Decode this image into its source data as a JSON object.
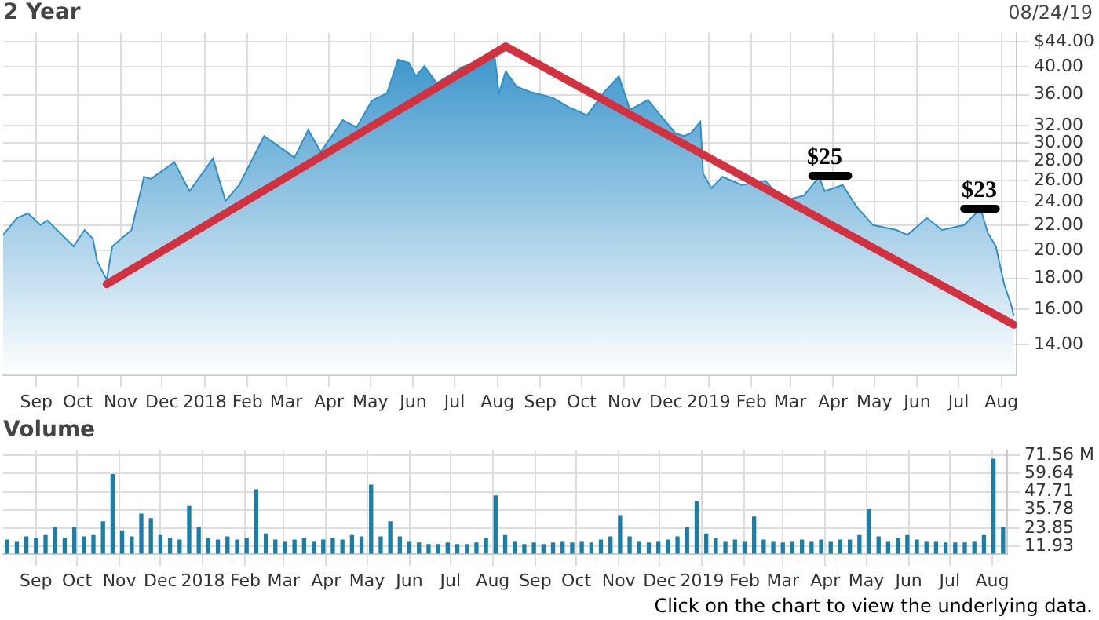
{
  "chart_data": [
    {
      "type": "area",
      "title": "2 Year",
      "log": true,
      "grid": true,
      "xlim": [
        "2017-08-22",
        "2019-08-26"
      ],
      "xticks": [
        {
          "value": "2017-09-15",
          "label": "Sep"
        },
        {
          "value": "2017-10-15",
          "label": "Oct"
        },
        {
          "value": "2017-11-15",
          "label": "Nov"
        },
        {
          "value": "2017-12-15",
          "label": "Dec"
        },
        {
          "value": "2018-01-15",
          "label": "2018"
        },
        {
          "value": "2018-02-15",
          "label": "Feb"
        },
        {
          "value": "2018-03-15",
          "label": "Mar"
        },
        {
          "value": "2018-04-15",
          "label": "Apr"
        },
        {
          "value": "2018-05-15",
          "label": "May"
        },
        {
          "value": "2018-06-15",
          "label": "Jun"
        },
        {
          "value": "2018-07-15",
          "label": "Jul"
        },
        {
          "value": "2018-08-15",
          "label": "Aug"
        },
        {
          "value": "2018-09-15",
          "label": "Sep"
        },
        {
          "value": "2018-10-15",
          "label": "Oct"
        },
        {
          "value": "2018-11-15",
          "label": "Nov"
        },
        {
          "value": "2018-12-15",
          "label": "Dec"
        },
        {
          "value": "2019-01-15",
          "label": "2019"
        },
        {
          "value": "2019-02-15",
          "label": "Feb"
        },
        {
          "value": "2019-03-15",
          "label": "Mar"
        },
        {
          "value": "2019-04-15",
          "label": "Apr"
        },
        {
          "value": "2019-05-15",
          "label": "May"
        },
        {
          "value": "2019-06-15",
          "label": "Jun"
        },
        {
          "value": "2019-07-15",
          "label": "Jul"
        },
        {
          "value": "2019-08-15",
          "label": "Aug"
        }
      ],
      "ylim": [
        12.5,
        45.5
      ],
      "yticks": [
        {
          "value": 14,
          "label": "14.00"
        },
        {
          "value": 16,
          "label": "16.00"
        },
        {
          "value": 18,
          "label": "18.00"
        },
        {
          "value": 20,
          "label": "20.00"
        },
        {
          "value": 22,
          "label": "22.00"
        },
        {
          "value": 24,
          "label": "24.00"
        },
        {
          "value": 26,
          "label": "26.00"
        },
        {
          "value": 28,
          "label": "28.00"
        },
        {
          "value": 30,
          "label": "30.00"
        },
        {
          "value": 32,
          "label": "32.00"
        },
        {
          "value": 36,
          "label": "36.00"
        },
        {
          "value": 40,
          "label": "40.00"
        },
        {
          "value": 44,
          "label": "$44.00"
        }
      ],
      "annotations": [
        "08/24/19",
        {
          "text": "$25",
          "x": "2019-04-09",
          "y": 26.5
        },
        {
          "text": "$23",
          "x": "2019-07-30",
          "y": 23.4
        }
      ],
      "series": [
        {
          "color": "#2f8fc8",
          "x": [
            "2017-08-22",
            "2017-09-01",
            "2017-09-09",
            "2017-09-18",
            "2017-09-23",
            "2017-10-12",
            "2017-10-20",
            "2017-10-26",
            "2017-10-29",
            "2017-11-05",
            "2017-11-09",
            "2017-11-23",
            "2017-12-02",
            "2017-12-07",
            "2017-12-24",
            "2018-01-04",
            "2018-01-21",
            "2018-01-30",
            "2018-02-09",
            "2018-02-27",
            "2018-03-21",
            "2018-03-31",
            "2018-04-09",
            "2018-04-25",
            "2018-05-05",
            "2018-05-16",
            "2018-05-27",
            "2018-06-04",
            "2018-06-12",
            "2018-06-17",
            "2018-06-23",
            "2018-07-02",
            "2018-07-21",
            "2018-08-04",
            "2018-08-13",
            "2018-08-16",
            "2018-08-21",
            "2018-08-29",
            "2018-09-09",
            "2018-09-24",
            "2018-10-05",
            "2018-10-19",
            "2018-10-31",
            "2018-11-11",
            "2018-11-19",
            "2018-12-02",
            "2018-12-11",
            "2018-12-22",
            "2018-12-28",
            "2019-01-02",
            "2019-01-09",
            "2019-01-11",
            "2019-01-17",
            "2019-01-25",
            "2019-02-08",
            "2019-02-25",
            "2019-03-10",
            "2019-03-25",
            "2019-04-05",
            "2019-04-09",
            "2019-04-22",
            "2019-05-02",
            "2019-05-14",
            "2019-05-31",
            "2019-06-08",
            "2019-06-22",
            "2019-07-03",
            "2019-07-19",
            "2019-07-31",
            "2019-08-05",
            "2019-08-11",
            "2019-08-17",
            "2019-08-22",
            "2019-08-24"
          ],
          "values": [
            21.2,
            22.6,
            23.0,
            22.0,
            22.4,
            20.3,
            21.6,
            20.9,
            19.2,
            17.9,
            20.3,
            21.6,
            26.4,
            26.2,
            27.9,
            25.0,
            28.3,
            24.1,
            25.6,
            30.8,
            28.4,
            31.5,
            29.0,
            32.7,
            31.8,
            35.2,
            36.2,
            41.1,
            40.6,
            38.6,
            40.1,
            37.6,
            40.0,
            41.1,
            41.6,
            36.2,
            39.3,
            37.1,
            36.3,
            35.6,
            34.4,
            33.3,
            36.3,
            38.6,
            34.0,
            35.3,
            33.3,
            31.1,
            30.8,
            31.1,
            32.5,
            26.7,
            25.3,
            26.4,
            25.6,
            26.0,
            24.1,
            24.6,
            26.4,
            25.0,
            25.6,
            23.6,
            22.0,
            21.6,
            21.2,
            22.6,
            21.6,
            22.0,
            23.4,
            21.4,
            20.3,
            17.6,
            16.3,
            15.6
          ]
        },
        {
          "type": "line",
          "color": "#d2323f",
          "x": [
            "2017-11-05",
            "2018-08-21",
            "2019-08-24"
          ],
          "values": [
            17.6,
            43.2,
            15.1
          ]
        },
        {
          "type": "line",
          "color": "#000000",
          "x": [
            "2019-03-31",
            "2019-04-26"
          ],
          "values": [
            26.5,
            26.5
          ]
        },
        {
          "type": "line",
          "color": "#000000",
          "x": [
            "2019-07-19",
            "2019-08-11"
          ],
          "values": [
            23.4,
            23.4
          ]
        }
      ]
    },
    {
      "type": "bar",
      "title": "Volume",
      "grid": true,
      "xlim": [
        "2017-08-22",
        "2019-08-26"
      ],
      "xticks": [
        {
          "value": "2017-09-15",
          "label": "Sep"
        },
        {
          "value": "2017-10-15",
          "label": "Oct"
        },
        {
          "value": "2017-11-15",
          "label": "Nov"
        },
        {
          "value": "2017-12-15",
          "label": "Dec"
        },
        {
          "value": "2018-01-15",
          "label": "2018"
        },
        {
          "value": "2018-02-15",
          "label": "Feb"
        },
        {
          "value": "2018-03-15",
          "label": "Mar"
        },
        {
          "value": "2018-04-15",
          "label": "Apr"
        },
        {
          "value": "2018-05-15",
          "label": "May"
        },
        {
          "value": "2018-06-15",
          "label": "Jun"
        },
        {
          "value": "2018-07-15",
          "label": "Jul"
        },
        {
          "value": "2018-08-15",
          "label": "Aug"
        },
        {
          "value": "2018-09-15",
          "label": "Sep"
        },
        {
          "value": "2018-10-15",
          "label": "Oct"
        },
        {
          "value": "2018-11-15",
          "label": "Nov"
        },
        {
          "value": "2018-12-15",
          "label": "Dec"
        },
        {
          "value": "2019-01-15",
          "label": "2019"
        },
        {
          "value": "2019-02-15",
          "label": "Feb"
        },
        {
          "value": "2019-03-15",
          "label": "Mar"
        },
        {
          "value": "2019-04-15",
          "label": "Apr"
        },
        {
          "value": "2019-05-15",
          "label": "May"
        },
        {
          "value": "2019-06-15",
          "label": "Jun"
        },
        {
          "value": "2019-07-15",
          "label": "Jul"
        },
        {
          "value": "2019-08-15",
          "label": "Aug"
        }
      ],
      "ylim": [
        7,
        75
      ],
      "yticks": [
        11.93,
        23.85,
        35.78,
        47.71,
        59.64,
        {
          "value": 71.56,
          "label": "71.56 M"
        }
      ],
      "annotations": [
        "Click on the chart to view the underlying data."
      ],
      "series": [
        {
          "color": "#1a7fa8",
          "x": [
            "2017-08-25",
            "2017-09-01",
            "2017-09-08",
            "2017-09-15",
            "2017-09-22",
            "2017-09-29",
            "2017-10-06",
            "2017-10-13",
            "2017-10-20",
            "2017-10-27",
            "2017-11-03",
            "2017-11-10",
            "2017-11-17",
            "2017-11-24",
            "2017-12-01",
            "2017-12-08",
            "2017-12-15",
            "2017-12-22",
            "2017-12-29",
            "2018-01-05",
            "2018-01-12",
            "2018-01-19",
            "2018-01-26",
            "2018-02-02",
            "2018-02-09",
            "2018-02-16",
            "2018-02-23",
            "2018-03-02",
            "2018-03-09",
            "2018-03-16",
            "2018-03-23",
            "2018-03-30",
            "2018-04-06",
            "2018-04-13",
            "2018-04-20",
            "2018-04-27",
            "2018-05-04",
            "2018-05-11",
            "2018-05-18",
            "2018-05-25",
            "2018-06-01",
            "2018-06-08",
            "2018-06-15",
            "2018-06-22",
            "2018-06-29",
            "2018-07-06",
            "2018-07-13",
            "2018-07-20",
            "2018-07-27",
            "2018-08-03",
            "2018-08-10",
            "2018-08-17",
            "2018-08-24",
            "2018-08-31",
            "2018-09-07",
            "2018-09-14",
            "2018-09-21",
            "2018-09-28",
            "2018-10-05",
            "2018-10-12",
            "2018-10-19",
            "2018-10-26",
            "2018-11-02",
            "2018-11-09",
            "2018-11-16",
            "2018-11-23",
            "2018-11-30",
            "2018-12-07",
            "2018-12-14",
            "2018-12-21",
            "2018-12-28",
            "2019-01-04",
            "2019-01-11",
            "2019-01-18",
            "2019-01-25",
            "2019-02-01",
            "2019-02-08",
            "2019-02-15",
            "2019-02-22",
            "2019-03-01",
            "2019-03-08",
            "2019-03-15",
            "2019-03-22",
            "2019-03-29",
            "2019-04-05",
            "2019-04-12",
            "2019-04-19",
            "2019-04-26",
            "2019-05-03",
            "2019-05-10",
            "2019-05-17",
            "2019-05-24",
            "2019-05-31",
            "2019-06-07",
            "2019-06-14",
            "2019-06-21",
            "2019-06-28",
            "2019-07-05",
            "2019-07-12",
            "2019-07-19",
            "2019-07-26",
            "2019-08-02",
            "2019-08-09",
            "2019-08-16",
            "2019-08-23"
          ],
          "values": [
            16,
            15,
            18,
            17,
            19,
            24,
            17,
            24,
            18,
            19,
            28,
            59,
            22,
            18,
            33,
            30,
            19,
            17,
            16,
            38,
            24,
            17,
            16,
            18,
            16,
            17,
            49,
            20,
            16,
            15,
            16,
            17,
            15,
            16,
            17,
            16,
            19,
            18,
            52,
            18,
            28,
            18,
            15,
            14,
            13,
            13,
            14,
            13,
            13,
            14,
            17,
            45,
            19,
            15,
            13,
            14,
            13,
            14,
            15,
            14,
            15,
            14,
            16,
            18,
            32,
            18,
            15,
            14,
            15,
            16,
            18,
            24,
            41,
            20,
            17,
            15,
            16,
            15,
            31,
            16,
            15,
            14,
            15,
            16,
            15,
            16,
            15,
            16,
            16,
            19,
            36,
            18,
            15,
            17,
            19,
            16,
            15,
            15,
            14,
            14,
            14,
            15,
            19,
            69,
            24
          ]
        }
      ]
    }
  ]
}
